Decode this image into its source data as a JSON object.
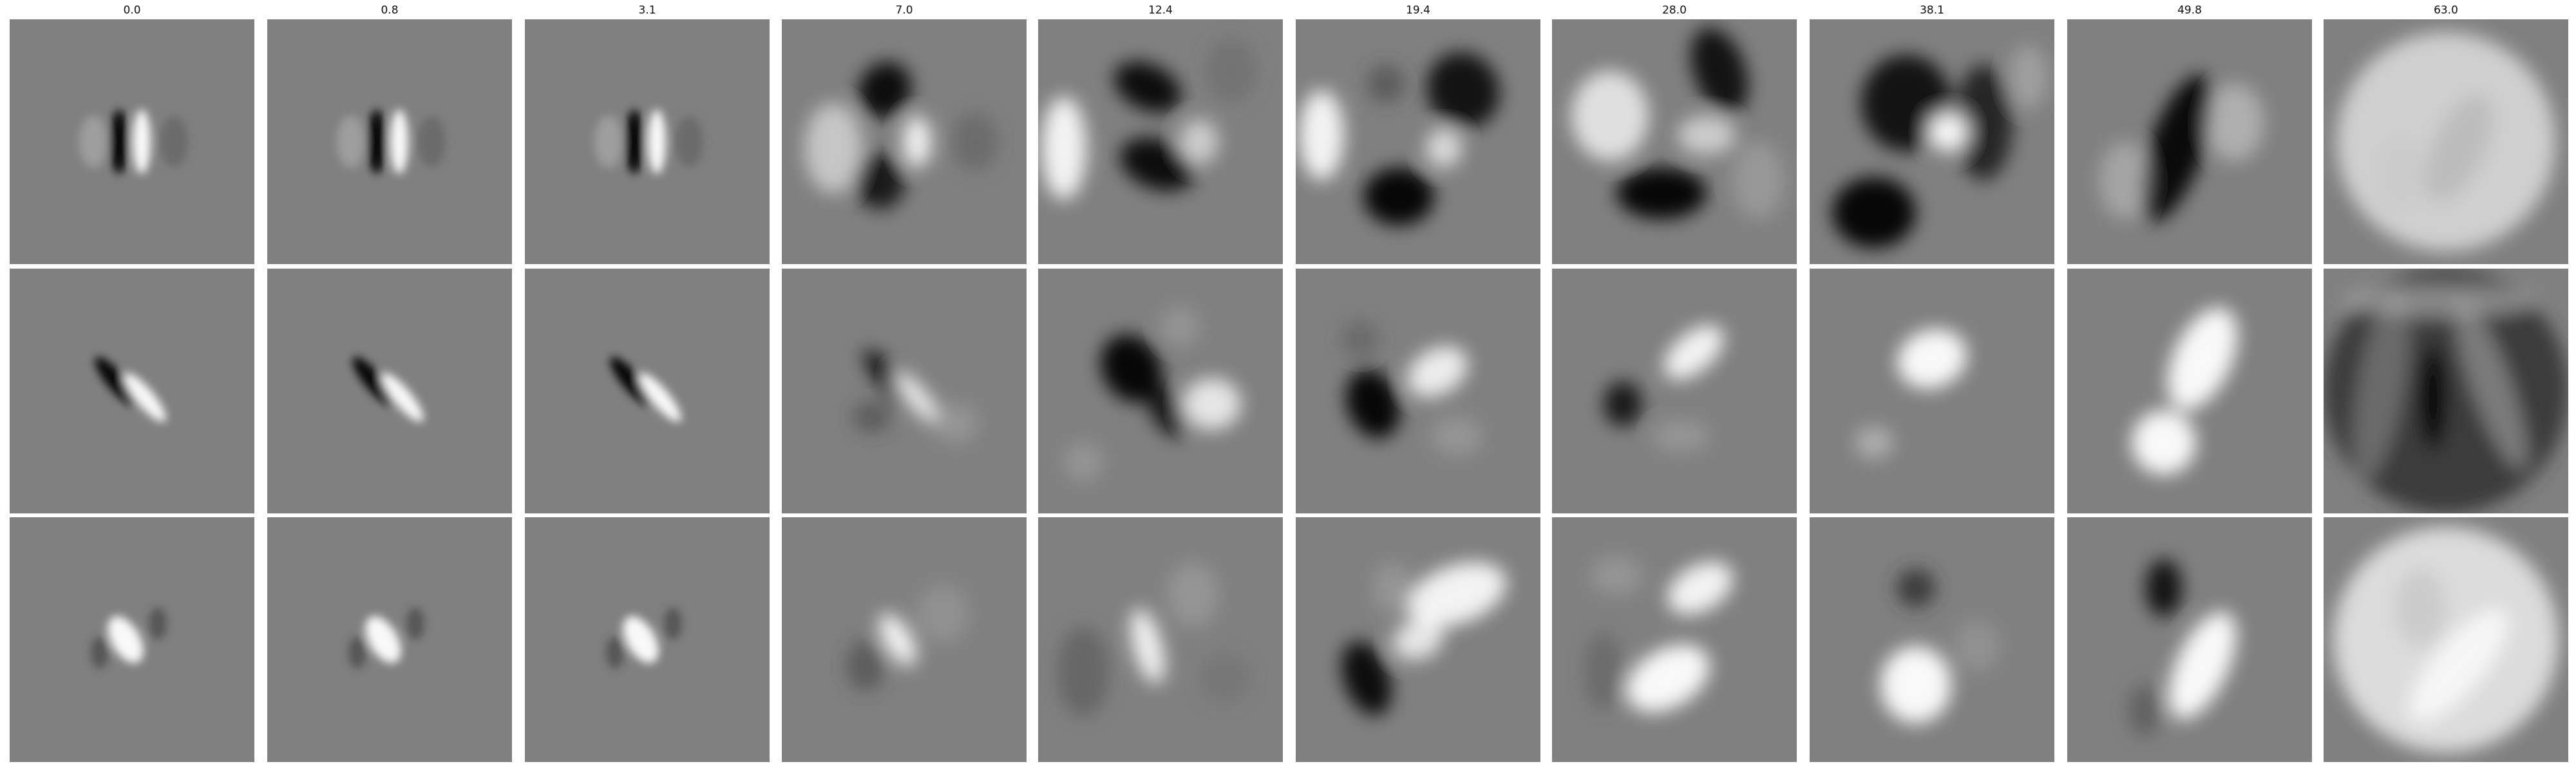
{
  "figure": {
    "column_titles": [
      "0.0",
      "0.8",
      "3.1",
      "7.0",
      "12.4",
      "19.4",
      "28.0",
      "38.1",
      "49.8",
      "63.0"
    ],
    "row_count": 3,
    "background_color": "#808080",
    "palette": {
      "dark": "#000000",
      "light": "#ffffff"
    }
  }
}
